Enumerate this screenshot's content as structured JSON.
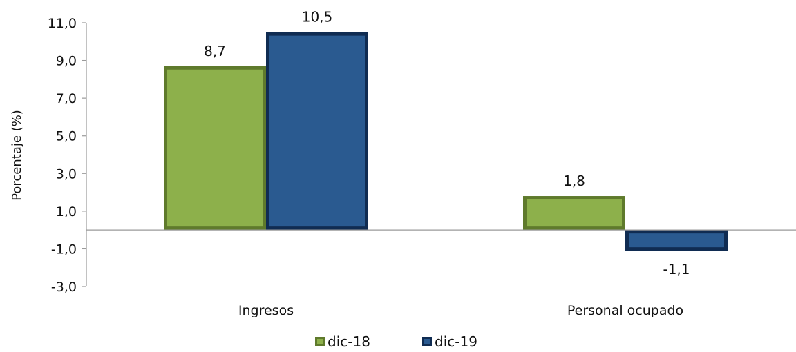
{
  "chart_data": {
    "type": "bar",
    "ylabel": "Porcentaje (%)",
    "ylim": [
      -3.0,
      11.0
    ],
    "yticks": [
      "11,0",
      "9,0",
      "7,0",
      "5,0",
      "3,0",
      "1,0",
      "-1,0",
      "-3,0"
    ],
    "ytick_values": [
      11,
      9,
      7,
      5,
      3,
      1,
      -1,
      -3
    ],
    "categories": [
      "Ingresos",
      "Personal ocupado"
    ],
    "series": [
      {
        "name": "dic-18",
        "values": [
          8.7,
          1.8
        ],
        "labels": [
          "8,7",
          "1,8"
        ],
        "color": "#8db04b",
        "shade": "#5f7a2c"
      },
      {
        "name": "dic-19",
        "values": [
          10.5,
          -1.1
        ],
        "labels": [
          "10,5",
          "-1,1"
        ],
        "color": "#2a5a90",
        "shade": "#102c52"
      }
    ],
    "legend_position": "bottom",
    "grid": false
  }
}
